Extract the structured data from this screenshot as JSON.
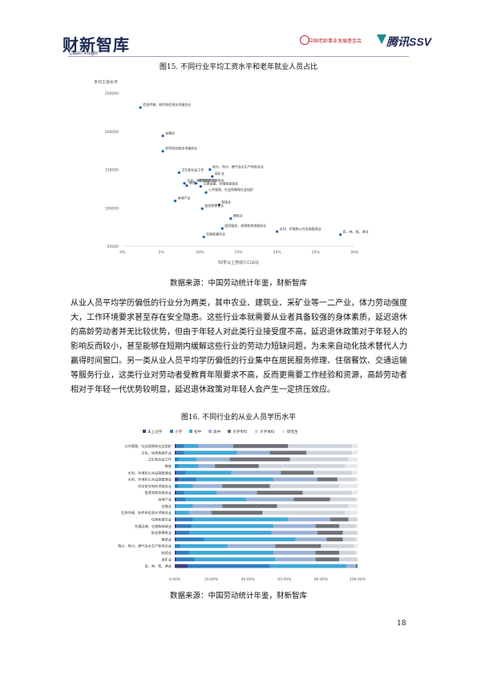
{
  "header": {
    "left_logo": "财新智库",
    "left_logo_sub": "Caixin Insight",
    "right_logo_1": "中国老龄事业发展基金会",
    "right_logo_2": "腾讯SSV"
  },
  "fig15": {
    "caption": "图15. 不同行业平均工资水平和老年就业人员占比",
    "source": "数据来源：中国劳动统计年鉴，财新智库"
  },
  "paragraph": "从业人员平均学历偏低的行业分为两类，其中农业、建筑业、采矿业等一二产业，体力劳动强度大，工作环境要求甚至存在安全隐患。这些行业本就需要从业者具备较强的身体素质，延迟退休的高龄劳动者并无比较优势，但由于年轻人对此类行业接受度不高，延迟退休政策对于年轻人的影响反而较小，甚至能够在短期内缓解这些行业的劳动力短缺问题，为未来自动化技术替代人力赢得时间窗口。另一类从业人员平均学历偏低的行业集中在居民服务修理、住宿餐饮、交通运输等服务行业，这类行业对劳动者受教育年限要求不高，反而更需要工作经验和资源，高龄劳动者相对于年轻一代优势较明显，延迟退休政策对年轻人会产生一定挤压效应。",
  "fig16": {
    "caption": "图16. 不同行业的从业人员学历水平",
    "source": "数据来源：中国劳动统计年鉴，财新智库"
  },
  "page_number": "18",
  "chart_data": [
    {
      "type": "scatter",
      "ylabel": "平均工资水平",
      "xlabel": "50岁以上劳动人口占比",
      "xlim": [
        0,
        0.3
      ],
      "ylim": [
        50000,
        250000
      ],
      "x_ticks": [
        "0%",
        "5%",
        "10%",
        "15%",
        "20%",
        "25%",
        "30%"
      ],
      "y_ticks": [
        "250000",
        "200000",
        "150000",
        "100000",
        "50000"
      ],
      "points": [
        {
          "label": "信息传输、软件和信息技术服务业",
          "x": 0.023,
          "y": 231000
        },
        {
          "label": "金融业",
          "x": 0.052,
          "y": 194000
        },
        {
          "label": "科学研究和技术服务业",
          "x": 0.052,
          "y": 174000
        },
        {
          "label": "电力、热力、燃气及水生产和供应业",
          "x": 0.113,
          "y": 150000
        },
        {
          "label": "卫生和社会工作",
          "x": 0.073,
          "y": 146000
        },
        {
          "label": "采矿业",
          "x": 0.116,
          "y": 141000
        },
        {
          "label": "文化、体育和娱乐业",
          "x": 0.08,
          "y": 132000
        },
        {
          "label": "教育",
          "x": 0.083,
          "y": 129000
        },
        {
          "label": "交通运输、仓储和邮政业",
          "x": 0.101,
          "y": 128000
        },
        {
          "label": "租赁和商务服务业",
          "x": 0.095,
          "y": 132000
        },
        {
          "label": "公共管理、社会保障和社会组织",
          "x": 0.108,
          "y": 120000
        },
        {
          "label": "房地产业",
          "x": 0.068,
          "y": 109000
        },
        {
          "label": "制造业",
          "x": 0.125,
          "y": 104000
        },
        {
          "label": "批发和零售业",
          "x": 0.103,
          "y": 99000
        },
        {
          "label": "建筑业",
          "x": 0.14,
          "y": 86000
        },
        {
          "label": "居民服务、修理和其他服务业",
          "x": 0.129,
          "y": 73000
        },
        {
          "label": "水利、环境和公共设施管理业",
          "x": 0.2,
          "y": 69000
        },
        {
          "label": "农、林、牧、渔业",
          "x": 0.282,
          "y": 65000
        },
        {
          "label": "住宿和餐饮业",
          "x": 0.105,
          "y": 62000
        }
      ]
    },
    {
      "type": "bar",
      "stacked": true,
      "horizontal": true,
      "legend": [
        "未上过学",
        "小学",
        "初中",
        "高中",
        "大学专科",
        "大学本科",
        "研究生"
      ],
      "colors": [
        "#3a3f7a",
        "#2f7ec4",
        "#3fa8d8",
        "#9ab2d6",
        "#6f7378",
        "#cfd4db",
        "#e6e8ec"
      ],
      "xlim": [
        0,
        1
      ],
      "x_ticks": [
        "0.00%",
        "20.00%",
        "40.00%",
        "60.00%",
        "80.00%",
        "100.00%"
      ],
      "categories": [
        "公共管理、社会保障和社会组织",
        "文化、体育和娱乐业",
        "卫生和社会工作",
        "教育",
        "水利、环境和公共设施管理业",
        "水利、环境和公共设施管理业",
        "科学研究和技术服务业",
        "租赁和商务服务业",
        "房地产业",
        "金融业",
        "信息传输、软件和信息技术服务业",
        "住宿和餐饮业",
        "交通运输、仓储和邮政业",
        "批发和零售业",
        "建筑业",
        "电力、热力、燃气及水生产和供应业",
        "制造业",
        "采矿业",
        "农、林、牧、渔业"
      ],
      "series": [
        {
          "name": "未上过学",
          "values": [
            0.01,
            0.01,
            0.0,
            0.0,
            0.01,
            0.02,
            0.0,
            0.01,
            0.01,
            0.0,
            0.0,
            0.01,
            0.01,
            0.01,
            0.01,
            0.0,
            0.01,
            0.01,
            0.07
          ]
        },
        {
          "name": "小学",
          "values": [
            0.04,
            0.04,
            0.02,
            0.02,
            0.05,
            0.1,
            0.02,
            0.04,
            0.05,
            0.01,
            0.01,
            0.09,
            0.08,
            0.07,
            0.15,
            0.03,
            0.07,
            0.1,
            0.45
          ]
        },
        {
          "name": "初中",
          "values": [
            0.08,
            0.29,
            0.1,
            0.11,
            0.25,
            0.42,
            0.08,
            0.18,
            0.33,
            0.09,
            0.07,
            0.52,
            0.45,
            0.45,
            0.5,
            0.26,
            0.46,
            0.44,
            0.42
          ]
        },
        {
          "name": "高中",
          "values": [
            0.19,
            0.18,
            0.18,
            0.09,
            0.27,
            0.24,
            0.16,
            0.22,
            0.26,
            0.16,
            0.12,
            0.23,
            0.23,
            0.25,
            0.17,
            0.26,
            0.23,
            0.22,
            0.05
          ]
        },
        {
          "name": "大学专科",
          "values": [
            0.3,
            0.2,
            0.33,
            0.24,
            0.18,
            0.11,
            0.26,
            0.25,
            0.2,
            0.3,
            0.28,
            0.1,
            0.13,
            0.14,
            0.09,
            0.25,
            0.13,
            0.13,
            0.01
          ]
        },
        {
          "name": "大学本科",
          "values": [
            0.35,
            0.25,
            0.32,
            0.47,
            0.21,
            0.1,
            0.38,
            0.27,
            0.14,
            0.39,
            0.45,
            0.05,
            0.09,
            0.08,
            0.07,
            0.18,
            0.09,
            0.1,
            0.0
          ]
        },
        {
          "name": "研究生",
          "values": [
            0.03,
            0.03,
            0.05,
            0.07,
            0.03,
            0.01,
            0.1,
            0.03,
            0.01,
            0.05,
            0.07,
            0.0,
            0.01,
            0.0,
            0.01,
            0.02,
            0.01,
            0.0,
            0.0
          ]
        }
      ]
    }
  ]
}
